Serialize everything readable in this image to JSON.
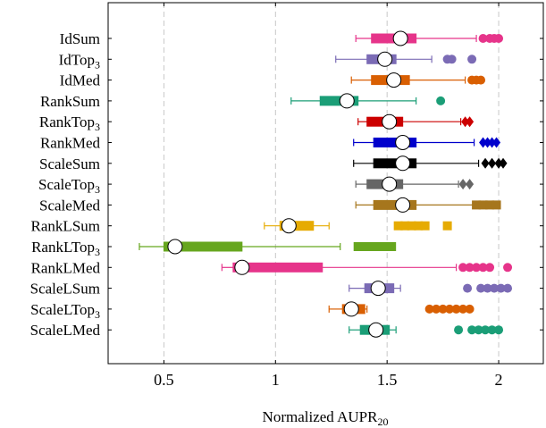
{
  "chart_data": {
    "type": "boxplot",
    "xlabel": "Normalized AUPR",
    "xlabel_subscript": "20",
    "xlim": [
      0.25,
      2.2
    ],
    "xticks": [
      0.5,
      1,
      1.5,
      2
    ],
    "xtick_labels": [
      "0.5",
      "1",
      "1.5",
      "2"
    ],
    "grid": "vertical dashed at ticks",
    "orientation": "horizontal",
    "series": [
      {
        "name": "IdSum",
        "sub": "",
        "color": "#e6348a",
        "outlier_marker": "circle",
        "whisker_low": 1.36,
        "q1": 1.43,
        "median": 1.55,
        "mean": 1.56,
        "q3": 1.63,
        "whisker_high": 1.9,
        "outliers": [
          1.93,
          1.96,
          1.98,
          2.0
        ]
      },
      {
        "name": "IdTop",
        "sub": "3",
        "color": "#7b6bb5",
        "outlier_marker": "circle",
        "whisker_low": 1.27,
        "q1": 1.41,
        "median": 1.48,
        "mean": 1.49,
        "q3": 1.54,
        "whisker_high": 1.7,
        "outliers": [
          1.77,
          1.79,
          1.88
        ]
      },
      {
        "name": "IdMed",
        "sub": "",
        "color": "#d95f02",
        "outlier_marker": "circle",
        "whisker_low": 1.34,
        "q1": 1.43,
        "median": 1.52,
        "mean": 1.53,
        "q3": 1.6,
        "whisker_high": 1.85,
        "outliers": [
          1.88,
          1.9,
          1.92
        ]
      },
      {
        "name": "RankSum",
        "sub": "",
        "color": "#1b9e77",
        "outlier_marker": "circle",
        "whisker_low": 1.07,
        "q1": 1.2,
        "median": 1.31,
        "mean": 1.32,
        "q3": 1.37,
        "whisker_high": 1.63,
        "outliers": [
          1.74
        ]
      },
      {
        "name": "RankTop",
        "sub": "3",
        "color": "#cc0000",
        "outlier_marker": "diamond",
        "whisker_low": 1.37,
        "q1": 1.41,
        "median": 1.5,
        "mean": 1.51,
        "q3": 1.57,
        "whisker_high": 1.83,
        "outliers": [
          1.85,
          1.87
        ]
      },
      {
        "name": "RankMed",
        "sub": "",
        "color": "#0000cc",
        "outlier_marker": "diamond",
        "whisker_low": 1.35,
        "q1": 1.44,
        "median": 1.55,
        "mean": 1.57,
        "q3": 1.63,
        "whisker_high": 1.89,
        "outliers": [
          1.93,
          1.95,
          1.97,
          1.99
        ]
      },
      {
        "name": "ScaleSum",
        "sub": "",
        "color": "#000000",
        "outlier_marker": "diamond",
        "whisker_low": 1.35,
        "q1": 1.44,
        "median": 1.55,
        "mean": 1.57,
        "q3": 1.63,
        "whisker_high": 1.91,
        "outliers": [
          1.94,
          1.97,
          2.0,
          2.02
        ]
      },
      {
        "name": "ScaleTop",
        "sub": "3",
        "color": "#666666",
        "outlier_marker": "diamond",
        "whisker_low": 1.36,
        "q1": 1.41,
        "median": 1.5,
        "mean": 1.51,
        "q3": 1.57,
        "whisker_high": 1.82,
        "outliers": [
          1.84,
          1.87
        ]
      },
      {
        "name": "ScaleMed",
        "sub": "",
        "color": "#a6761d",
        "outlier_marker": "square",
        "whisker_low": 1.36,
        "q1": 1.44,
        "median": 1.55,
        "mean": 1.57,
        "q3": 1.63,
        "whisker_high": 1.9,
        "outliers": [
          1.9,
          1.93,
          1.96,
          1.99
        ]
      },
      {
        "name": "RankLSum",
        "sub": "",
        "color": "#e6ab02",
        "outlier_marker": "square",
        "whisker_low": 0.95,
        "q1": 1.02,
        "median": 1.06,
        "mean": 1.06,
        "q3": 1.17,
        "whisker_high": 1.24,
        "outliers": [
          1.55,
          1.58,
          1.61,
          1.64,
          1.67,
          1.77
        ]
      },
      {
        "name": "RankLTop",
        "sub": "3",
        "color": "#66a61e",
        "outlier_marker": "square",
        "whisker_low": 0.39,
        "q1": 0.5,
        "median": 0.55,
        "mean": 0.55,
        "q3": 0.85,
        "whisker_high": 1.29,
        "outliers": [
          1.37,
          1.4,
          1.43,
          1.46,
          1.49,
          1.52
        ]
      },
      {
        "name": "RankLMed",
        "sub": "",
        "color": "#e6348a",
        "outlier_marker": "circle",
        "whisker_low": 0.76,
        "q1": 0.81,
        "median": 0.85,
        "mean": 0.85,
        "q3": 1.21,
        "whisker_high": 1.81,
        "outliers": [
          1.84,
          1.87,
          1.9,
          1.93,
          1.96,
          2.04
        ]
      },
      {
        "name": "ScaleLSum",
        "sub": "",
        "color": "#7b6bb5",
        "outlier_marker": "circle",
        "whisker_low": 1.33,
        "q1": 1.4,
        "median": 1.46,
        "mean": 1.46,
        "q3": 1.53,
        "whisker_high": 1.56,
        "outliers": [
          1.86,
          1.92,
          1.95,
          1.98,
          2.01,
          2.04
        ]
      },
      {
        "name": "ScaleLTop",
        "sub": "3",
        "color": "#d95f02",
        "outlier_marker": "circle",
        "whisker_low": 1.24,
        "q1": 1.3,
        "median": 1.34,
        "mean": 1.34,
        "q3": 1.4,
        "whisker_high": 1.41,
        "outliers": [
          1.69,
          1.72,
          1.75,
          1.78,
          1.81,
          1.84,
          1.87
        ]
      },
      {
        "name": "ScaleLMed",
        "sub": "",
        "color": "#1b9e77",
        "outlier_marker": "circle",
        "whisker_low": 1.33,
        "q1": 1.38,
        "median": 1.44,
        "mean": 1.45,
        "q3": 1.51,
        "whisker_high": 1.54,
        "outliers": [
          1.82,
          1.88,
          1.91,
          1.94,
          1.97,
          2.0
        ]
      }
    ]
  }
}
